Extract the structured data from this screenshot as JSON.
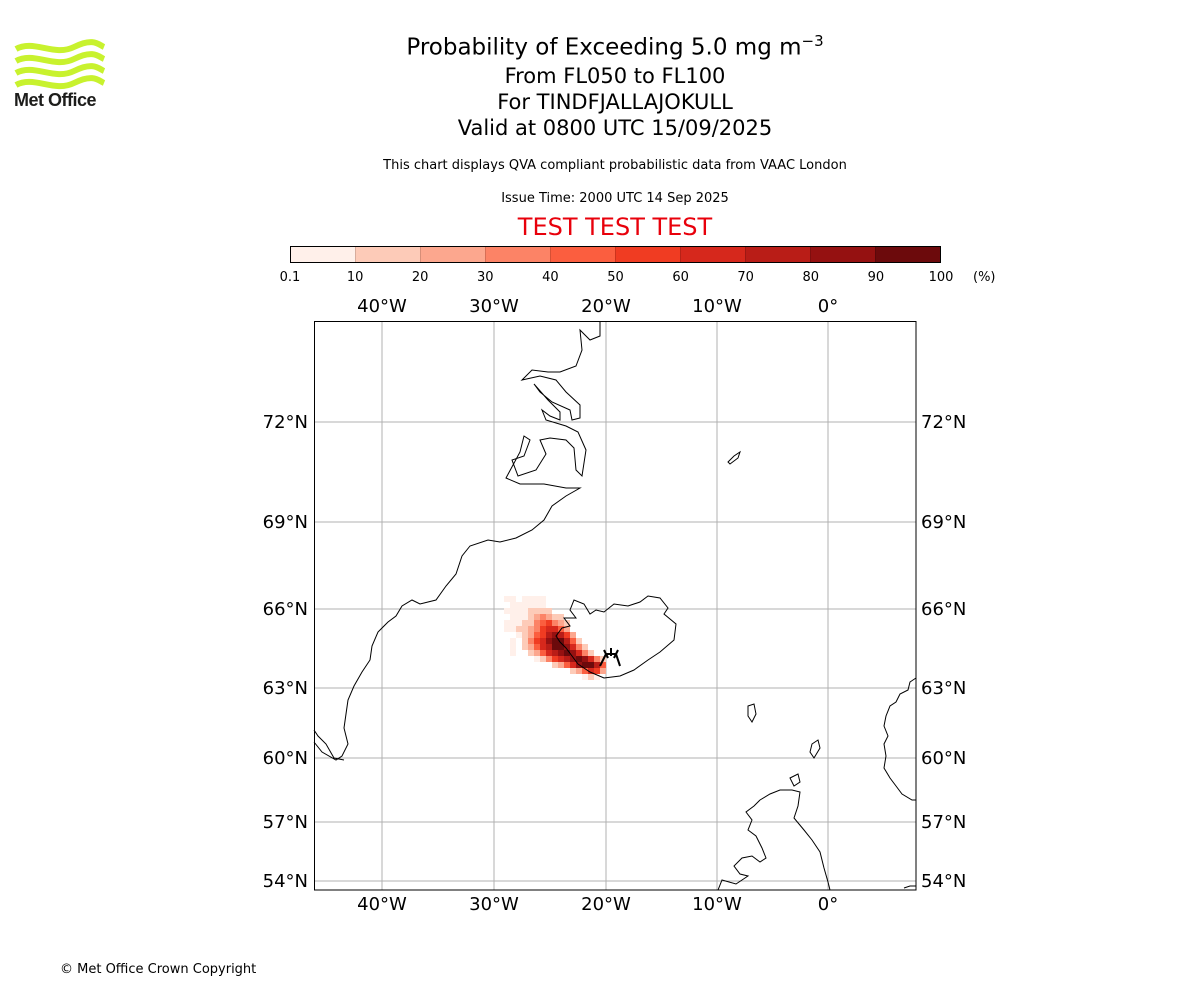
{
  "logo": {
    "name": "Met Office",
    "color": "#c8f22e"
  },
  "header": {
    "title_main": "Probability of Exceeding 5.0 mg m",
    "title_sup": "−3",
    "line2": "From FL050 to FL100",
    "line3": "For TINDFJALLAJOKULL",
    "line4": "Valid at 0800 UTC 15/09/2025",
    "subtitle": "This chart displays QVA compliant probabilistic data from VAAC London",
    "issue_time": "Issue Time: 2000 UTC 14 Sep 2025",
    "test_banner": "TEST TEST TEST"
  },
  "colorbar": {
    "ticks": [
      "0.1",
      "10",
      "20",
      "30",
      "40",
      "50",
      "60",
      "70",
      "80",
      "90",
      "100"
    ],
    "unit": "(%)",
    "colors": [
      "#fff0ea",
      "#fdcbb8",
      "#fca78e",
      "#fc8366",
      "#fb5e3f",
      "#f03c22",
      "#d6281c",
      "#b91d17",
      "#951111",
      "#6c0a0c"
    ]
  },
  "map": {
    "lon_labels": [
      "40°W",
      "30°W",
      "20°W",
      "10°W",
      "0°"
    ],
    "lat_labels": [
      "72°N",
      "69°N",
      "66°N",
      "63°N",
      "60°N",
      "57°N",
      "54°N"
    ],
    "extent": {
      "lon": [
        -46,
        8
      ],
      "lat": [
        53.7,
        75
      ]
    },
    "volcano": "TINDFJALLAJOKULL"
  },
  "footer": {
    "copyright": "© Met Office Crown Copyright"
  }
}
